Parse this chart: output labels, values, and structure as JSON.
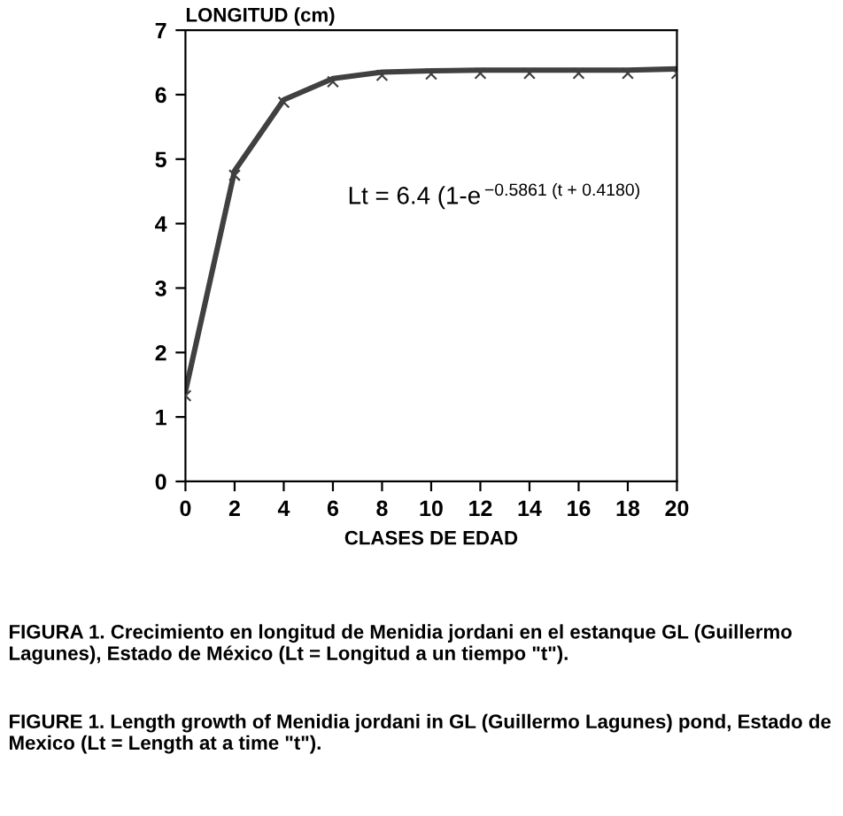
{
  "chart_data": {
    "type": "line",
    "x": [
      0,
      2,
      4,
      6,
      8,
      10,
      12,
      14,
      16,
      18,
      20
    ],
    "series": [
      {
        "type": "line",
        "color": "#404040",
        "values": [
          1.4,
          4.82,
          5.92,
          6.25,
          6.35,
          6.37,
          6.38,
          6.38,
          6.38,
          6.38,
          6.4
        ]
      },
      {
        "type": "scatter",
        "color": "#404040",
        "marker": "cross",
        "values": [
          1.33,
          4.75,
          5.88,
          6.2,
          6.3,
          6.32,
          6.33,
          6.33,
          6.33,
          6.33,
          6.33
        ]
      }
    ],
    "xlabel": "CLASES DE EDAD",
    "ylabel": "LONGITUD (cm)",
    "xlim": [
      0,
      20
    ],
    "xticks": [
      0,
      2,
      4,
      6,
      8,
      10,
      12,
      14,
      16,
      18,
      20
    ],
    "ylim": [
      0,
      7
    ],
    "yticks": [
      0,
      1,
      2,
      3,
      4,
      5,
      6,
      7
    ],
    "grid": false,
    "legend": false,
    "annotations": [
      "Lt = 6.4 (1-e$^{−0.5861 (t + 0.4180)}$",
      "FIGURA 1. Crecimiento en longitud de Menidia jordani en el estanque GL (Guillermo Lagunes), Estado de México (Lt = Longitud a un tiempo \"t\").",
      "FIGURE 1. Length growth of Menidia jordani in GL (Guillermo Lagunes) pond, Estado de Mexico (Lt = Length at a time \"t\")."
    ]
  }
}
